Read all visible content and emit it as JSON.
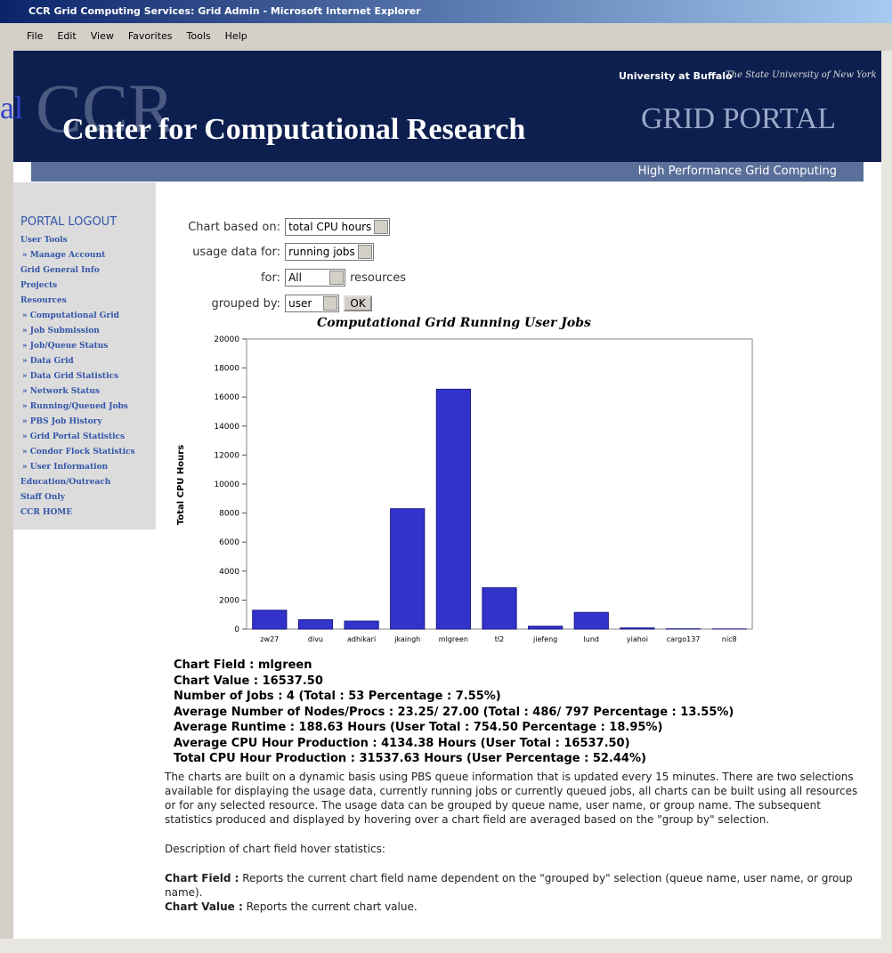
{
  "window": {
    "title": "CCR Grid Computing Services: Grid Admin - Microsoft Internet Explorer",
    "menu": [
      "File",
      "Edit",
      "View",
      "Favorites",
      "Tools",
      "Help"
    ]
  },
  "header": {
    "university": "University at Buffalo",
    "university_sub": "The State University of New York",
    "logo": "CCR",
    "center": "Center for Computational Research",
    "portal": "GRID PORTAL",
    "tagline": "High Performance Grid Computing",
    "stray_text": "al"
  },
  "nav": [
    "PORTAL LOGOUT",
    "User Tools",
    "» Manage Account",
    "Grid General Info",
    "Projects",
    "Resources",
    "» Computational Grid",
    "» Job Submission",
    "» Job/Queue Status",
    "» Data Grid",
    "» Data Grid Statistics",
    "» Network Status",
    "» Running/Queued Jobs",
    "» PBS Job History",
    "» Grid Portal Statistics",
    "» Condor Flock Statistics",
    "» User Information",
    "Education/Outreach",
    "Staff Only",
    "CCR HOME"
  ],
  "form": {
    "chart_label": "Chart based on:",
    "chart_value": "total CPU hours",
    "usage_label": "usage data for:",
    "usage_value": "running jobs",
    "for_label": "for:",
    "for_value": "All",
    "for_suffix": "resources",
    "group_label": "grouped by:",
    "group_value": "user",
    "button": "OK"
  },
  "chart_data": {
    "type": "bar",
    "title": "Computational Grid Running User Jobs",
    "y_label": "Total CPU Hours",
    "categories": [
      "zw27",
      "divu",
      "adhikari",
      "jkaingh",
      "mlgreen",
      "tl2",
      "jiefeng",
      "lund",
      "yiahoi",
      "cargo137",
      "nic8"
    ],
    "values": [
      1300,
      650,
      550,
      8300,
      16537.5,
      2850,
      200,
      1150,
      80,
      20,
      10
    ],
    "color": "#3333cc",
    "ylim": [
      0,
      20000
    ],
    "yticks": [
      0,
      2000,
      4000,
      6000,
      8000,
      10000,
      12000,
      14000,
      16000,
      18000,
      20000
    ],
    "grid": false
  },
  "stats": [
    "Chart Field : mlgreen",
    "Chart Value : 16537.50",
    "Number of Jobs : 4 (Total : 53 Percentage : 7.55%)",
    "Average Number of Nodes/Procs : 23.25/ 27.00 (Total : 486/ 797 Percentage : 13.55%)",
    "Average Runtime : 188.63 Hours (User Total : 754.50 Percentage : 18.95%)",
    "Average CPU Hour Production : 4134.38 Hours (User Total : 16537.50)",
    "Total CPU Hour Production : 31537.63 Hours (User Percentage : 52.44%)"
  ],
  "description": {
    "intro": "The charts are built on a dynamic basis using PBS queue information that is updated every 15 minutes. There are two selections available for displaying the usage data, currently running jobs or currently queued jobs, all charts can be built using all resources or for any selected resource. The usage data can be grouped by queue name, user name, or group name. The subsequent statistics produced and displayed by hovering over a chart field are averaged based on the \"group by\" selection.",
    "heading": "Description of chart field hover statistics:",
    "items": [
      {
        "term": "Chart Field :",
        "text": "Reports the current chart field name dependent on the \"grouped by\" selection (queue name, user name, or group name)."
      },
      {
        "term": "Chart Value :",
        "text": "Reports the current chart value."
      }
    ]
  }
}
